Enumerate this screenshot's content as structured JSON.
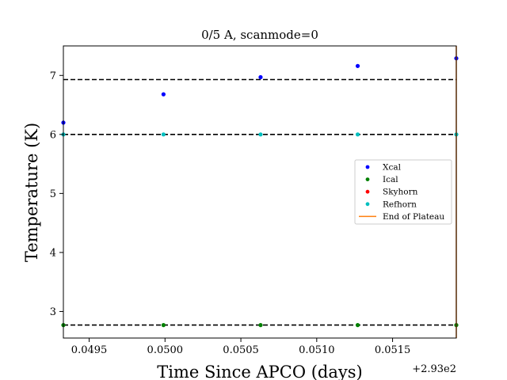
{
  "chart_data": {
    "type": "scatter",
    "title": "0/5 A, scanmode=0",
    "xlabel": "Time Since APCO (days)",
    "ylabel": "Temperature (K)",
    "x_offset_label": "+2.93e2",
    "xlim": [
      0.04933,
      0.05192
    ],
    "ylim": [
      2.55,
      7.5
    ],
    "x_tick_values": [
      0.0495,
      0.05,
      0.0505,
      0.051,
      0.0515
    ],
    "x_tick_labels": [
      "0.0495",
      "0.0500",
      "0.0505",
      "0.0510",
      "0.0515"
    ],
    "y_tick_values": [
      3,
      4,
      5,
      6,
      7
    ],
    "y_tick_labels": [
      "3",
      "4",
      "5",
      "6",
      "7"
    ],
    "grid": false,
    "legend_position": "right",
    "hlines": [
      6.93,
      6.0,
      2.77
    ],
    "vline_x": 0.05192,
    "series": [
      {
        "name": "Xcal",
        "color": "#0000ff",
        "x": [
          0.04933,
          0.04999,
          0.05063,
          0.05127,
          0.05192
        ],
        "y": [
          6.2,
          6.68,
          6.97,
          7.16,
          7.29
        ]
      },
      {
        "name": "Ical",
        "color": "#008000",
        "x": [
          0.04933,
          0.04999,
          0.05063,
          0.05127,
          0.05192
        ],
        "y": [
          2.77,
          2.77,
          2.77,
          2.77,
          2.77
        ]
      },
      {
        "name": "Skyhorn",
        "color": "#ff0000",
        "x": [],
        "y": []
      },
      {
        "name": "Refhorn",
        "color": "#00bfbf",
        "x": [
          0.04933,
          0.04999,
          0.05063,
          0.05127,
          0.05192
        ],
        "y": [
          6.0,
          6.0,
          6.0,
          6.0,
          6.0
        ]
      }
    ],
    "plateau_line": {
      "name": "End of Plateau",
      "color": "#ff7f0e"
    }
  }
}
